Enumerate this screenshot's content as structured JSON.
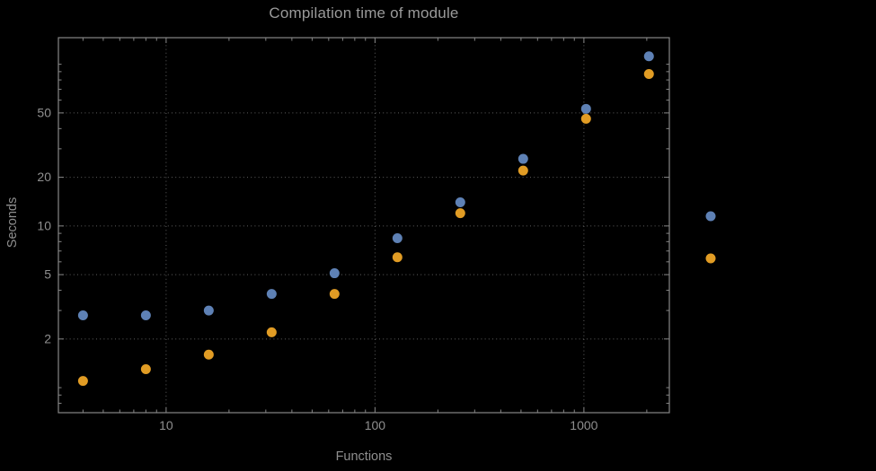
{
  "chart_data": {
    "type": "scatter",
    "title": "Compilation time of module",
    "xlabel": "Functions",
    "ylabel": "Seconds",
    "x_scale": "log",
    "y_scale": "log",
    "xlim": [
      3.05,
      2565
    ],
    "ylim": [
      0.7,
      146
    ],
    "x_ticks": [
      10,
      100,
      1000
    ],
    "y_ticks": [
      2,
      5,
      10,
      20,
      50
    ],
    "grid": "dotted",
    "x": [
      4,
      8,
      16,
      32,
      64,
      128,
      256,
      512,
      1024,
      2048
    ],
    "series": [
      {
        "name": "blue",
        "color": "#5e81b5",
        "values": [
          2.8,
          2.8,
          3.0,
          3.8,
          5.1,
          8.4,
          14,
          26,
          53,
          112
        ]
      },
      {
        "name": "orange",
        "color": "#e19c24",
        "values": [
          1.1,
          1.3,
          1.6,
          2.2,
          3.8,
          6.4,
          12,
          22,
          46,
          87
        ]
      }
    ],
    "legend": {
      "position": "right-of-frame",
      "labels_visible": false,
      "markers": [
        {
          "name": "blue",
          "color": "#5e81b5"
        },
        {
          "name": "orange",
          "color": "#e19c24"
        }
      ]
    }
  },
  "colors": {
    "background": "#000000",
    "frame": "#878787",
    "grid": "#5f5f5f",
    "label": "#8f8f8f",
    "title": "#9a9a9a"
  }
}
